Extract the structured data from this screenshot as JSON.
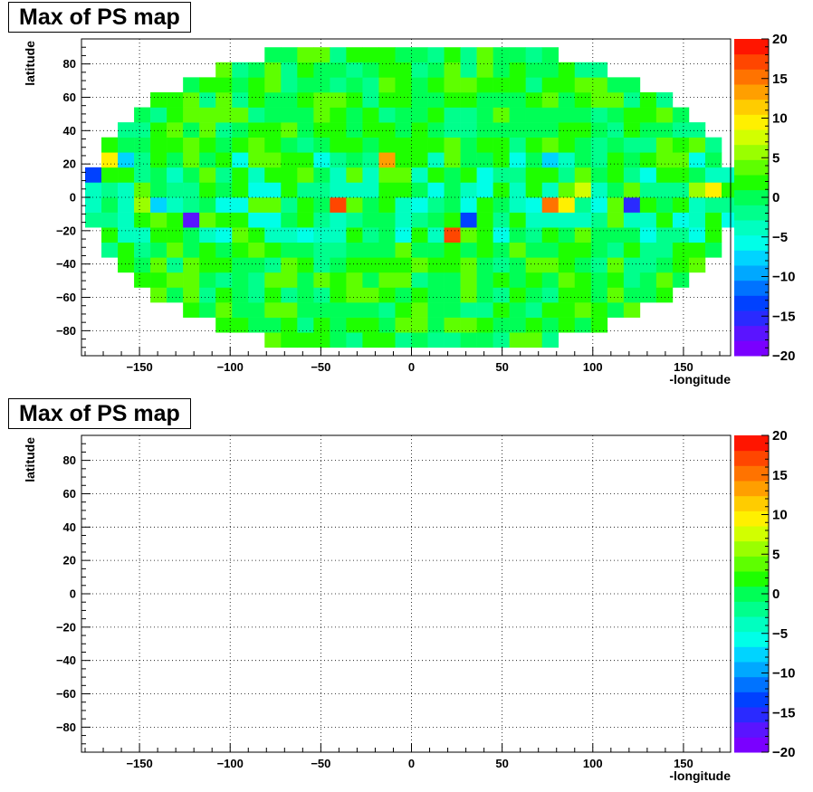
{
  "chart_data": [
    {
      "type": "heatmap",
      "title": "Max of PS map",
      "xlabel": "-longitude",
      "ylabel": "latitude",
      "xlim": [
        -182,
        176
      ],
      "ylim": [
        -95,
        95
      ],
      "x_ticks": [
        -150,
        -100,
        -50,
        0,
        50,
        100,
        150
      ],
      "y_ticks": [
        -80,
        -60,
        -40,
        -20,
        0,
        20,
        40,
        60,
        80
      ],
      "grid": true,
      "colorbar": {
        "min": -20,
        "max": 20,
        "ticks": [
          -20,
          -15,
          -10,
          -5,
          0,
          5,
          10,
          15,
          20
        ]
      },
      "cells": [
        [
          -5,
          5,
          2,
          0,
          0,
          0,
          0,
          0,
          0,
          0,
          0,
          0,
          0,
          0,
          0,
          0,
          0,
          0,
          0,
          0,
          0,
          0,
          0,
          0,
          0,
          0,
          0,
          0,
          0,
          0,
          0,
          0,
          0,
          0,
          0,
          0,
          0,
          0,
          0,
          0,
          0,
          0,
          0,
          0,
          0,
          0,
          0,
          0,
          0,
          0,
          0,
          0,
          0,
          0,
          0,
          0,
          0,
          0,
          0,
          0,
          0,
          0,
          0,
          0,
          0,
          0,
          0,
          0,
          0,
          0,
          0,
          0,
          0,
          0,
          0,
          0,
          0,
          0,
          0,
          0,
          0,
          0,
          0,
          0,
          0,
          0,
          0,
          0,
          0,
          0,
          0,
          0,
          0,
          0,
          0,
          0,
          0,
          0,
          0,
          0,
          0,
          0,
          0,
          0,
          0,
          0,
          0,
          0,
          0,
          0,
          0,
          0,
          0,
          0,
          0,
          0,
          0,
          0,
          0,
          0,
          0,
          0,
          0,
          0,
          0,
          0,
          0,
          0,
          0,
          0
        ]
      ]
    },
    {
      "type": "heatmap",
      "title": "Max of PS map",
      "xlabel": "-longitude",
      "ylabel": "latitude",
      "xlim": [
        -182,
        176
      ],
      "ylim": [
        -95,
        95
      ],
      "x_ticks": [
        -150,
        -100,
        -50,
        0,
        50,
        100,
        150
      ],
      "y_ticks": [
        -80,
        -60,
        -40,
        -20,
        0,
        20,
        40,
        60,
        80
      ],
      "grid": true,
      "colorbar": {
        "min": -20,
        "max": 20,
        "ticks": [
          -20,
          -15,
          -10,
          -5,
          0,
          5,
          10,
          15,
          20
        ]
      },
      "cells": []
    }
  ]
}
